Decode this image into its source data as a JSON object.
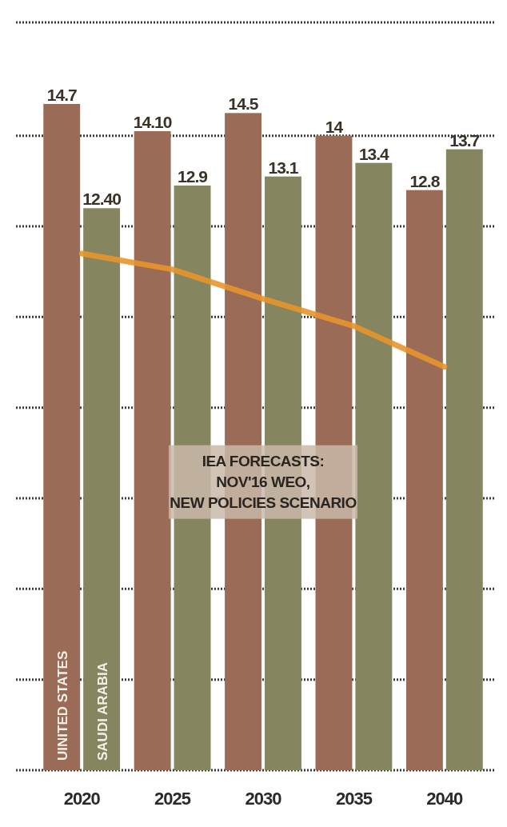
{
  "chart_data": {
    "type": "bar",
    "categories": [
      "2020",
      "2025",
      "2030",
      "2035",
      "2040"
    ],
    "series": [
      {
        "name": "UINITED STATES",
        "color": "#9a6b56",
        "values": [
          14.7,
          14.1,
          14.5,
          14,
          12.8
        ],
        "value_labels": [
          "14.7",
          "14.10",
          "14.5",
          "14",
          "12.8"
        ]
      },
      {
        "name": "SAUDI ARABIA",
        "color": "#85855f",
        "values": [
          12.4,
          12.9,
          13.1,
          13.4,
          13.7
        ],
        "value_labels": [
          "12.40",
          "12.9",
          "13.1",
          "13.4",
          "13.7"
        ]
      },
      {
        "type": "line",
        "color": "#e8952c",
        "values": [
          11.4,
          11.05,
          10.4,
          9.8,
          8.9
        ]
      }
    ],
    "ylim": [
      0,
      16.5
    ],
    "yticks": [
      {
        "value": 0,
        "label": null
      },
      {
        "value": 2,
        "label": null
      },
      {
        "value": 4,
        "label": null
      },
      {
        "value": 6,
        "label": null
      },
      {
        "value": 8,
        "label": null
      },
      {
        "value": 10,
        "label": null
      },
      {
        "value": 12,
        "label": null
      },
      {
        "value": 14,
        "label": null
      }
    ],
    "tick_labels": "x",
    "grid": "y",
    "annotations": [
      "IEA FORECASTS:\nNOV'16 WEO,\nNEW POLICIES SCENARIO"
    ]
  }
}
